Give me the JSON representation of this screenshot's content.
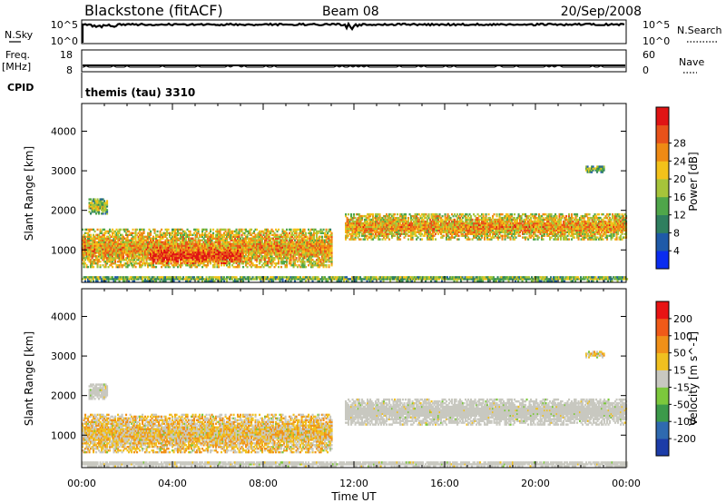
{
  "header": {
    "title": "Blackstone (fitACF)",
    "beam": "Beam 08",
    "date": "20/Sep/2008"
  },
  "panels": {
    "nsky_label": "N.Sky",
    "nsky_ticks": [
      "10^5",
      "10^0"
    ],
    "nsearch_label": "N.Search",
    "nsearch_ticks": [
      "10^5",
      "10^0"
    ],
    "freq_label": "Freq.",
    "freq_unit": "[MHz]",
    "freq_ticks": [
      "18",
      "8"
    ],
    "nave_label": "Nave",
    "nave_ticks": [
      "60",
      "0"
    ],
    "cpid_label": "CPID",
    "cpid_text": "themis (tau) 3310"
  },
  "chart_data": [
    {
      "type": "heatmap",
      "name": "Power",
      "ylabel": "Slant Range [km]",
      "xlabel": "Time UT",
      "x_ticks": [
        "00:00",
        "04:00",
        "08:00",
        "12:00",
        "16:00",
        "20:00",
        "00:00"
      ],
      "x_range_hours": [
        0,
        24
      ],
      "y_ticks": [
        1000,
        2000,
        3000,
        4000
      ],
      "ylim": [
        180,
        4700
      ],
      "colorbar": {
        "label": "Power [dB]",
        "ticks": [
          "4",
          "8",
          "12",
          "16",
          "20",
          "24",
          "28"
        ],
        "colors": [
          "#0a2cf0",
          "#1f5aa8",
          "#2f7f5f",
          "#4fa64a",
          "#a6c43a",
          "#f3c21a",
          "#ef8a14",
          "#e8521a",
          "#e01414"
        ]
      },
      "echo_regions": [
        {
          "t_start": 0.3,
          "t_end": 1.1,
          "r_min": 1900,
          "r_max": 2300,
          "level": 0.35
        },
        {
          "t_start": 0.0,
          "t_end": 11.0,
          "r_min": 550,
          "r_max": 1500,
          "level": 0.55
        },
        {
          "t_start": 3.0,
          "t_end": 7.0,
          "r_min": 650,
          "r_max": 1000,
          "level": 0.8
        },
        {
          "t_start": 0.0,
          "t_end": 24.0,
          "r_min": 200,
          "r_max": 330,
          "level": 0.3
        },
        {
          "t_start": 11.6,
          "t_end": 24.0,
          "r_min": 1250,
          "r_max": 1900,
          "level": 0.55
        },
        {
          "t_start": 22.2,
          "t_end": 23.0,
          "r_min": 2950,
          "r_max": 3100,
          "level": 0.3
        }
      ]
    },
    {
      "type": "heatmap",
      "name": "Velocity",
      "ylabel": "Slant Range [km]",
      "xlabel": "Time UT",
      "x_ticks": [
        "00:00",
        "04:00",
        "08:00",
        "12:00",
        "16:00",
        "20:00",
        "00:00"
      ],
      "x_range_hours": [
        0,
        24
      ],
      "y_ticks": [
        1000,
        2000,
        3000,
        4000
      ],
      "ylim": [
        180,
        4700
      ],
      "colorbar": {
        "label": "Velocity [m s^-1]",
        "ticks": [
          "200",
          "100",
          "50",
          "15",
          "-15",
          "-50",
          "-100",
          "-200"
        ],
        "colors": [
          "#1c3ca8",
          "#2f6ab0",
          "#3c9a4a",
          "#7cc83c",
          "#c8c8c0",
          "#f0c020",
          "#f09018",
          "#f05a18",
          "#e81414"
        ]
      },
      "echo_regions": [
        {
          "t_start": 0.3,
          "t_end": 1.1,
          "r_min": 1900,
          "r_max": 2300,
          "level": 0.55
        },
        {
          "t_start": 0.0,
          "t_end": 11.0,
          "r_min": 550,
          "r_max": 1500,
          "level": 0.65
        },
        {
          "t_start": 0.0,
          "t_end": 24.0,
          "r_min": 200,
          "r_max": 330,
          "level": 0.5
        },
        {
          "t_start": 11.6,
          "t_end": 24.0,
          "r_min": 1250,
          "r_max": 1900,
          "level": 0.5
        },
        {
          "t_start": 22.2,
          "t_end": 23.0,
          "r_min": 2950,
          "r_max": 3100,
          "level": 0.6
        }
      ]
    }
  ]
}
